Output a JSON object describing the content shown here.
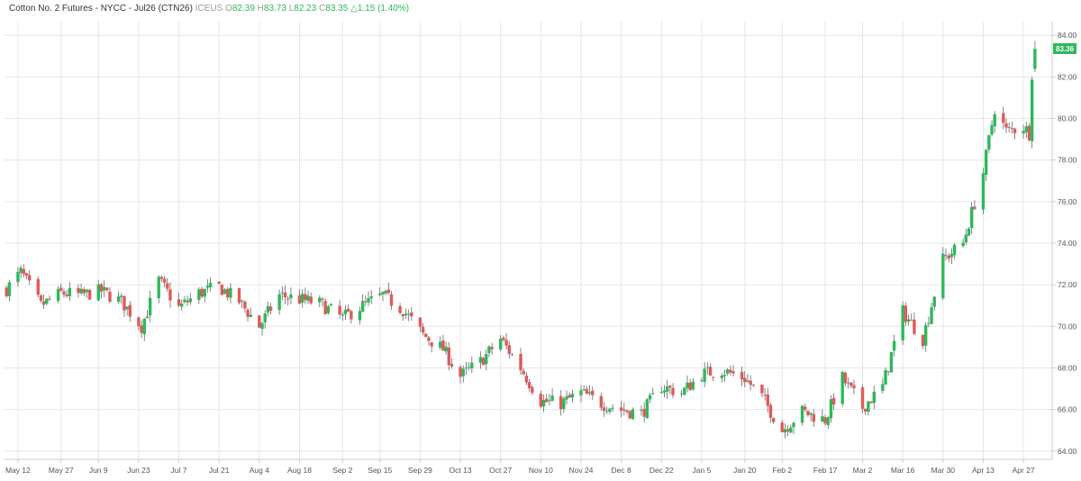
{
  "header": {
    "instrument": "Cotton No. 2 Futures - NYCC - Jul26 (CTN26)",
    "exchange": "ICEUS",
    "open_label": "O",
    "open": "82.39",
    "high_label": "H",
    "high": "83.73",
    "low_label": "L",
    "low": "82.23",
    "close_label": "C",
    "close": "83.35",
    "change": "△1.15 (1.40%)"
  },
  "last_price_label": "83.36",
  "chart_data": {
    "type": "candlestick",
    "title": "Cotton No. 2 Futures - NYCC - Jul26 (CTN26)",
    "ylim": [
      63.6,
      84.4
    ],
    "yticks": [
      "84.00",
      "82.00",
      "80.00",
      "78.00",
      "76.00",
      "74.00",
      "72.00",
      "70.00",
      "68.00",
      "66.00",
      "64.00"
    ],
    "yticks_values": [
      84,
      82,
      80,
      78,
      76,
      74,
      72,
      70,
      68,
      66,
      64
    ],
    "xlim": [
      "2025-05-07",
      "2026-05-07"
    ],
    "xticks": [
      {
        "label": "May 12",
        "date": "2025-05-12"
      },
      {
        "label": "May 27",
        "date": "2025-05-27"
      },
      {
        "label": "Jun 9",
        "date": "2025-06-09"
      },
      {
        "label": "Jun 23",
        "date": "2025-06-23"
      },
      {
        "label": "Jul 7",
        "date": "2025-07-07"
      },
      {
        "label": "Jul 21",
        "date": "2025-07-21"
      },
      {
        "label": "Aug 4",
        "date": "2025-08-04"
      },
      {
        "label": "Aug 18",
        "date": "2025-08-18"
      },
      {
        "label": "Sep 2",
        "date": "2025-09-02"
      },
      {
        "label": "Sep 15",
        "date": "2025-09-15"
      },
      {
        "label": "Sep 29",
        "date": "2025-09-29"
      },
      {
        "label": "Oct 13",
        "date": "2025-10-13"
      },
      {
        "label": "Oct 27",
        "date": "2025-10-27"
      },
      {
        "label": "Nov 10",
        "date": "2025-11-10"
      },
      {
        "label": "Nov 24",
        "date": "2025-11-24"
      },
      {
        "label": "Dec 8",
        "date": "2025-12-08"
      },
      {
        "label": "Dec 22",
        "date": "2025-12-22"
      },
      {
        "label": "Jan 5",
        "date": "2026-01-05"
      },
      {
        "label": "Jan 20",
        "date": "2026-01-20"
      },
      {
        "label": "Feb 2",
        "date": "2026-02-02"
      },
      {
        "label": "Feb 17",
        "date": "2026-02-17"
      },
      {
        "label": "Mar 2",
        "date": "2026-03-02"
      },
      {
        "label": "Mar 16",
        "date": "2026-03-16"
      },
      {
        "label": "Mar 30",
        "date": "2026-03-30"
      },
      {
        "label": "Apr 13",
        "date": "2026-04-13"
      },
      {
        "label": "Apr 27",
        "date": "2026-04-27"
      }
    ],
    "grid": true,
    "colors": {
      "up": "#2eb85c",
      "down": "#e05a5a",
      "wick": "#666666",
      "grid": "#e6e6e6",
      "last_label_bg": "#2eb85c"
    },
    "anchors": [
      {
        "date": "2025-05-08",
        "close": 71.8
      },
      {
        "date": "2025-05-13",
        "close": 72.6
      },
      {
        "date": "2025-05-20",
        "close": 71.0
      },
      {
        "date": "2025-05-27",
        "close": 71.6
      },
      {
        "date": "2025-06-03",
        "close": 71.5
      },
      {
        "date": "2025-06-10",
        "close": 71.7
      },
      {
        "date": "2025-06-17",
        "close": 71.2
      },
      {
        "date": "2025-06-24",
        "close": 70.0
      },
      {
        "date": "2025-06-30",
        "close": 72.2
      },
      {
        "date": "2025-07-07",
        "close": 70.9
      },
      {
        "date": "2025-07-14",
        "close": 71.6
      },
      {
        "date": "2025-07-21",
        "close": 71.9
      },
      {
        "date": "2025-07-28",
        "close": 71.2
      },
      {
        "date": "2025-08-04",
        "close": 70.0
      },
      {
        "date": "2025-08-11",
        "close": 71.5
      },
      {
        "date": "2025-08-18",
        "close": 71.3
      },
      {
        "date": "2025-08-25",
        "close": 71.1
      },
      {
        "date": "2025-09-02",
        "close": 70.4
      },
      {
        "date": "2025-09-09",
        "close": 71.0
      },
      {
        "date": "2025-09-16",
        "close": 71.5
      },
      {
        "date": "2025-09-23",
        "close": 70.8
      },
      {
        "date": "2025-09-30",
        "close": 69.6
      },
      {
        "date": "2025-10-07",
        "close": 68.9
      },
      {
        "date": "2025-10-13",
        "close": 67.6
      },
      {
        "date": "2025-10-20",
        "close": 68.3
      },
      {
        "date": "2025-10-27",
        "close": 69.4
      },
      {
        "date": "2025-11-03",
        "close": 68.0
      },
      {
        "date": "2025-11-10",
        "close": 66.4
      },
      {
        "date": "2025-11-17",
        "close": 66.3
      },
      {
        "date": "2025-11-24",
        "close": 66.8
      },
      {
        "date": "2025-12-01",
        "close": 66.3
      },
      {
        "date": "2025-12-08",
        "close": 66.0
      },
      {
        "date": "2025-12-15",
        "close": 65.8
      },
      {
        "date": "2025-12-22",
        "close": 67.1
      },
      {
        "date": "2025-12-29",
        "close": 66.8
      },
      {
        "date": "2026-01-05",
        "close": 67.7
      },
      {
        "date": "2026-01-12",
        "close": 67.9
      },
      {
        "date": "2026-01-20",
        "close": 67.5
      },
      {
        "date": "2026-01-26",
        "close": 66.6
      },
      {
        "date": "2026-02-02",
        "close": 65.0
      },
      {
        "date": "2026-02-09",
        "close": 65.9
      },
      {
        "date": "2026-02-17",
        "close": 65.5
      },
      {
        "date": "2026-02-23",
        "close": 67.5
      },
      {
        "date": "2026-03-02",
        "close": 66.1
      },
      {
        "date": "2026-03-09",
        "close": 67.1
      },
      {
        "date": "2026-03-16",
        "close": 70.7
      },
      {
        "date": "2026-03-23",
        "close": 69.4
      },
      {
        "date": "2026-03-30",
        "close": 73.2
      },
      {
        "date": "2026-04-06",
        "close": 74.0
      },
      {
        "date": "2026-04-13",
        "close": 77.4
      },
      {
        "date": "2026-04-17",
        "close": 80.5
      },
      {
        "date": "2026-04-21",
        "close": 79.4
      },
      {
        "date": "2026-04-27",
        "close": 79.6
      },
      {
        "date": "2026-04-29",
        "close": 79.3
      },
      {
        "date": "2026-04-30",
        "close": 82.2
      },
      {
        "date": "2026-05-01",
        "close": 83.36
      }
    ],
    "last_bar": {
      "open": 82.39,
      "high": 83.73,
      "low": 82.23,
      "close": 83.35
    }
  }
}
